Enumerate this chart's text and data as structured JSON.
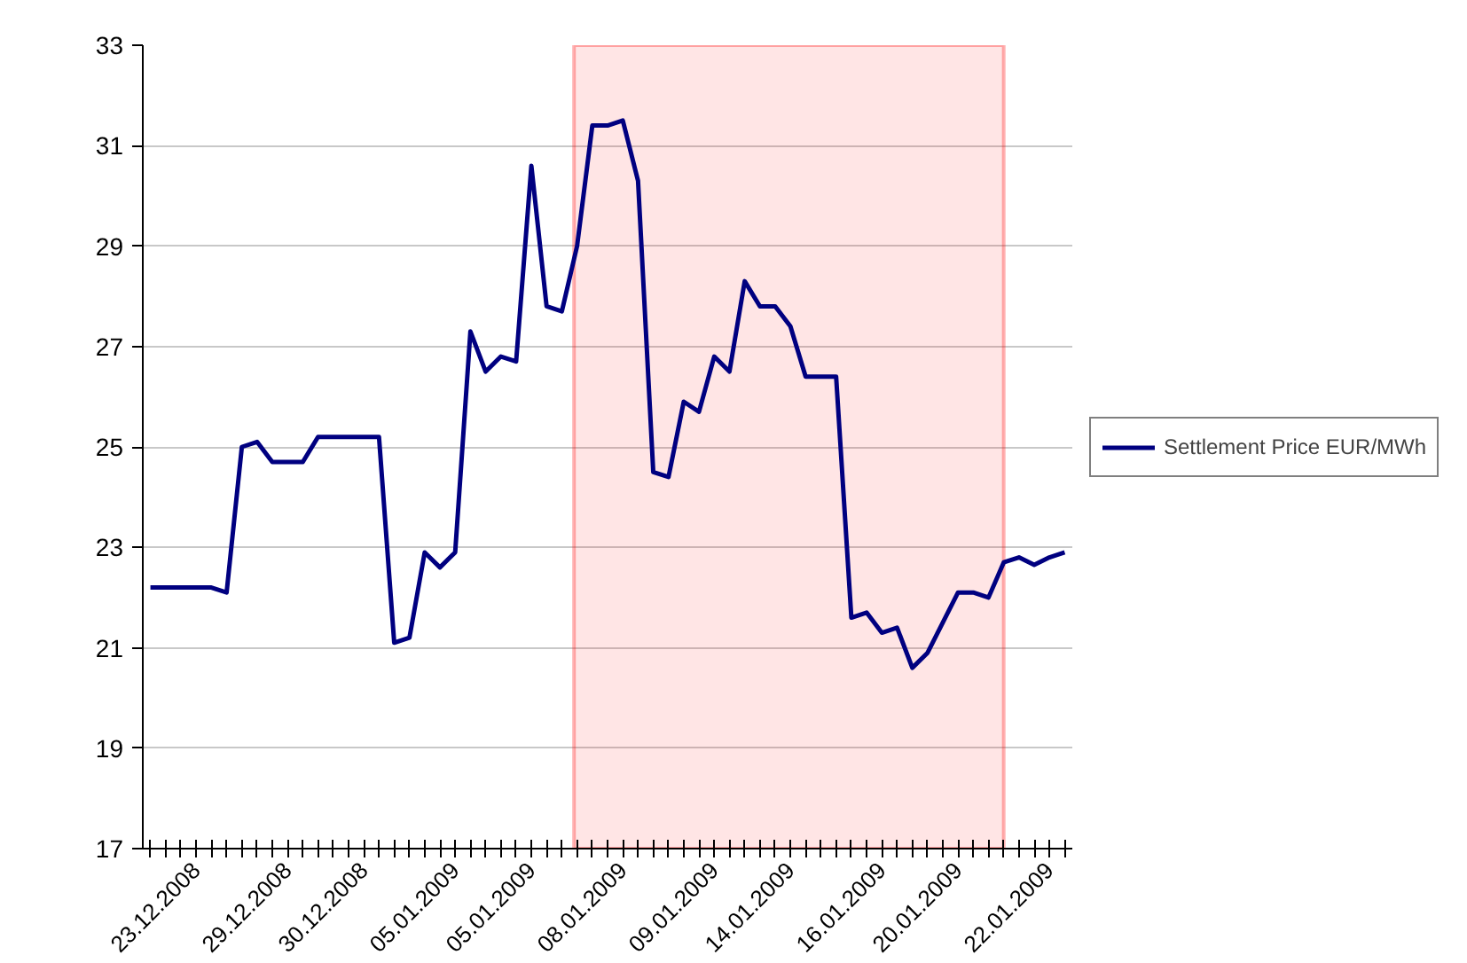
{
  "chart_data": {
    "type": "line",
    "categories": [
      null,
      null,
      null,
      "23.12.2008",
      null,
      null,
      null,
      null,
      null,
      "29.12.2008",
      null,
      null,
      null,
      null,
      "30.12.2008",
      null,
      null,
      null,
      null,
      null,
      "05.01.2009",
      null,
      null,
      null,
      null,
      "05.01.2009",
      null,
      null,
      null,
      null,
      null,
      "08.01.2009",
      null,
      null,
      null,
      null,
      null,
      "09.01.2009",
      null,
      null,
      null,
      null,
      "14.01.2009",
      null,
      null,
      null,
      null,
      null,
      "16.01.2009",
      null,
      null,
      null,
      null,
      "20.01.2009",
      null,
      null,
      null,
      null,
      null,
      "22.01.2009",
      null
    ],
    "series": [
      {
        "name": "Settlement Price EUR/MWh",
        "color": "#000080",
        "values": [
          22.2,
          22.2,
          22.2,
          22.2,
          22.2,
          22.1,
          25.0,
          25.1,
          24.7,
          24.7,
          24.7,
          25.2,
          25.2,
          25.2,
          25.2,
          25.2,
          21.1,
          21.2,
          22.9,
          22.6,
          22.9,
          27.3,
          26.5,
          26.8,
          26.7,
          30.6,
          27.8,
          27.7,
          29.0,
          31.4,
          31.4,
          31.5,
          30.3,
          24.5,
          24.4,
          25.9,
          25.7,
          26.8,
          26.5,
          28.3,
          27.8,
          27.8,
          27.4,
          26.4,
          26.4,
          26.4,
          21.6,
          21.7,
          21.3,
          21.4,
          20.6,
          20.9,
          21.5,
          22.1,
          22.1,
          22.0,
          22.7,
          22.8,
          22.65,
          22.8,
          22.9
        ]
      }
    ],
    "ylim": [
      17,
      33
    ],
    "yticks": [
      17,
      19,
      21,
      23,
      25,
      27,
      29,
      31,
      33
    ],
    "grid": "y",
    "legend": "right",
    "marker": "none",
    "line_style": "solid"
  }
}
